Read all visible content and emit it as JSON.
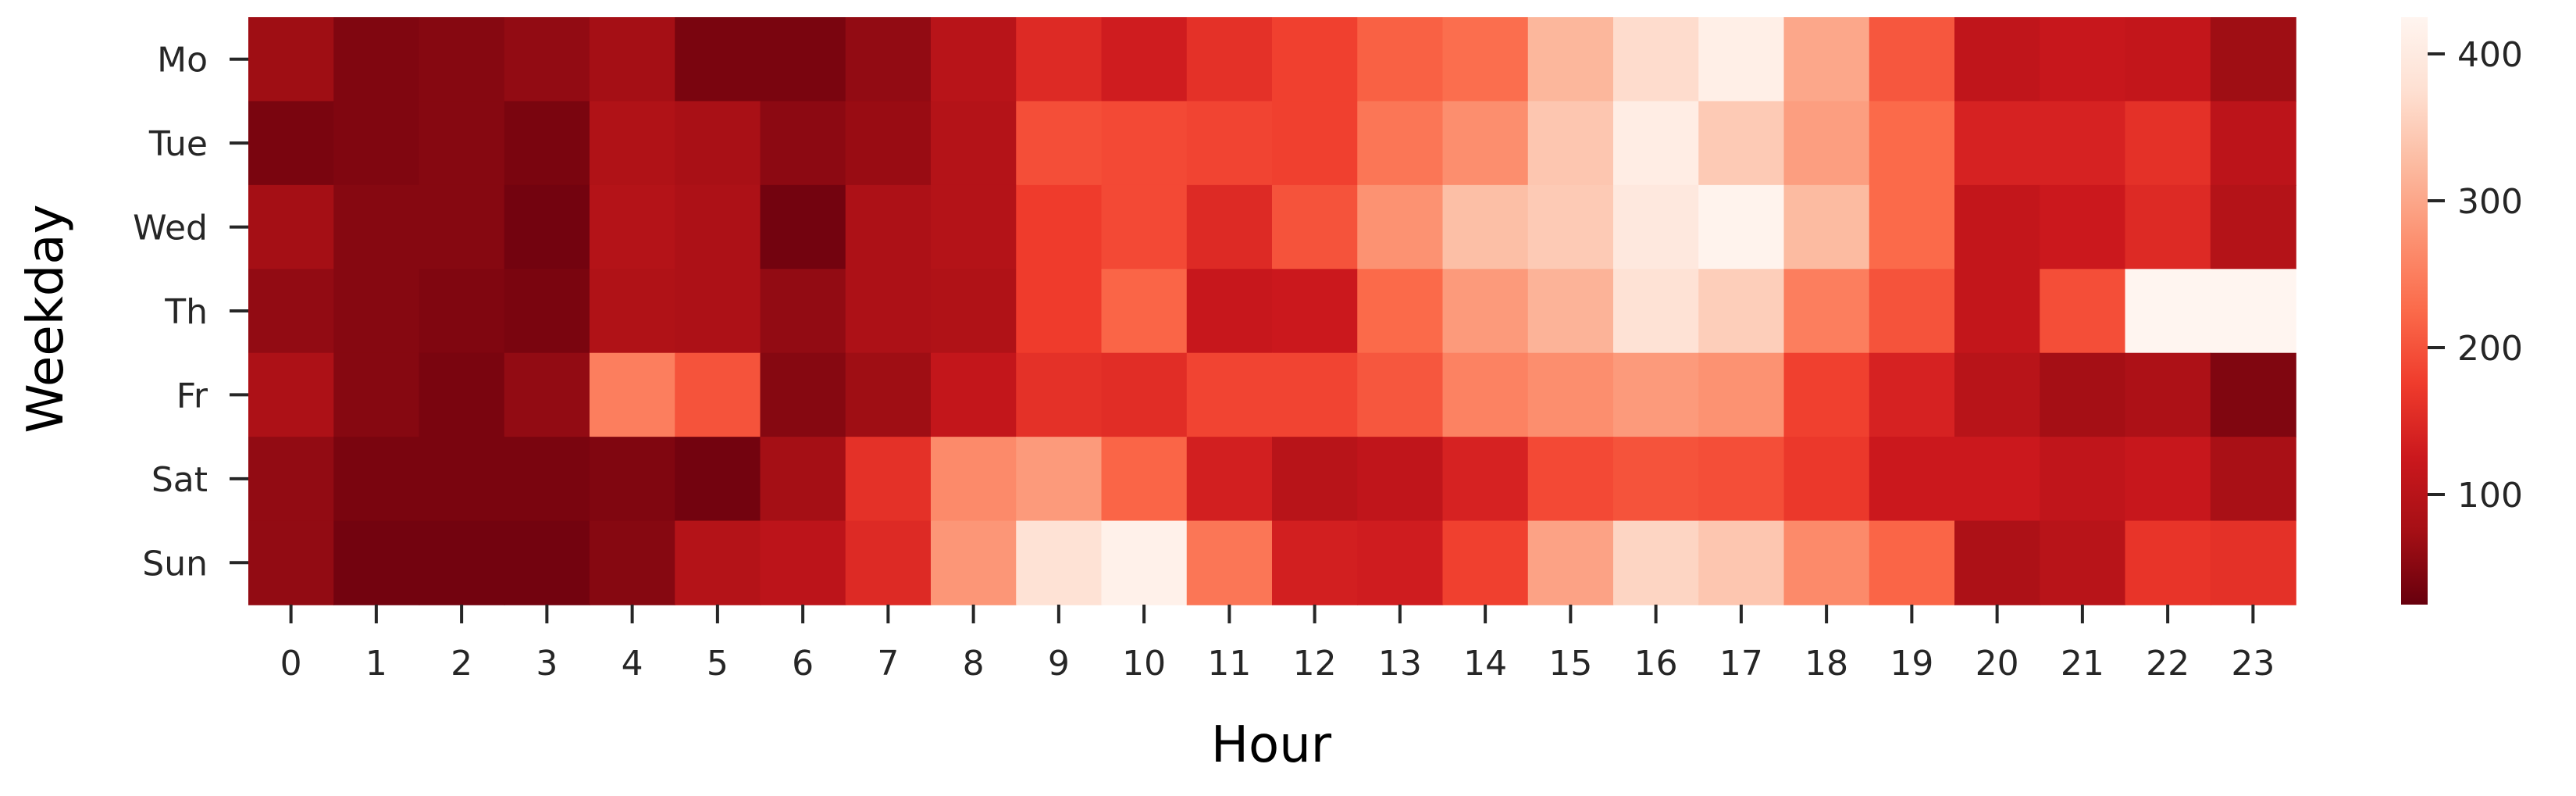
{
  "chart_data": {
    "type": "heatmap",
    "title": "",
    "xlabel": "Hour",
    "ylabel": "Weekday",
    "x": [
      "0",
      "1",
      "2",
      "3",
      "4",
      "5",
      "6",
      "7",
      "8",
      "9",
      "10",
      "11",
      "12",
      "13",
      "14",
      "15",
      "16",
      "17",
      "18",
      "19",
      "20",
      "21",
      "22",
      "23"
    ],
    "y": [
      "Mo",
      "Tue",
      "Wed",
      "Th",
      "Fr",
      "Sat",
      "Sun"
    ],
    "values": [
      [
        70,
        45,
        50,
        60,
        75,
        40,
        40,
        60,
        100,
        150,
        130,
        160,
        180,
        215,
        230,
        320,
        370,
        410,
        300,
        205,
        110,
        120,
        115,
        70
      ],
      [
        40,
        45,
        50,
        40,
        90,
        80,
        55,
        65,
        95,
        195,
        190,
        185,
        180,
        240,
        270,
        340,
        405,
        345,
        290,
        225,
        140,
        140,
        160,
        105
      ],
      [
        75,
        50,
        50,
        35,
        95,
        85,
        35,
        85,
        95,
        175,
        190,
        150,
        200,
        275,
        330,
        345,
        395,
        420,
        325,
        225,
        115,
        125,
        150,
        95
      ],
      [
        60,
        50,
        45,
        40,
        90,
        85,
        60,
        85,
        90,
        175,
        220,
        120,
        125,
        225,
        285,
        315,
        380,
        350,
        250,
        200,
        115,
        195,
        425,
        425
      ],
      [
        85,
        50,
        40,
        60,
        250,
        200,
        50,
        70,
        115,
        160,
        155,
        185,
        185,
        205,
        255,
        270,
        285,
        275,
        180,
        140,
        100,
        75,
        85,
        45
      ],
      [
        60,
        40,
        40,
        40,
        45,
        35,
        75,
        160,
        265,
        285,
        220,
        135,
        100,
        110,
        140,
        190,
        200,
        195,
        170,
        125,
        125,
        110,
        120,
        80
      ],
      [
        60,
        35,
        35,
        35,
        50,
        95,
        105,
        150,
        280,
        380,
        415,
        240,
        135,
        130,
        180,
        295,
        360,
        340,
        265,
        220,
        85,
        100,
        165,
        160
      ]
    ],
    "colorbar": {
      "min": 25,
      "max": 425,
      "ticks": [
        100,
        200,
        300,
        400
      ],
      "colormap": "Reds_r",
      "stops": [
        "#67000d",
        "#a50f15",
        "#cb181d",
        "#ef3b2c",
        "#fb6a4a",
        "#fc9272",
        "#fcbba1",
        "#fee0d2",
        "#fff5f0"
      ]
    },
    "grid": false,
    "legend": "colorbar-right"
  }
}
